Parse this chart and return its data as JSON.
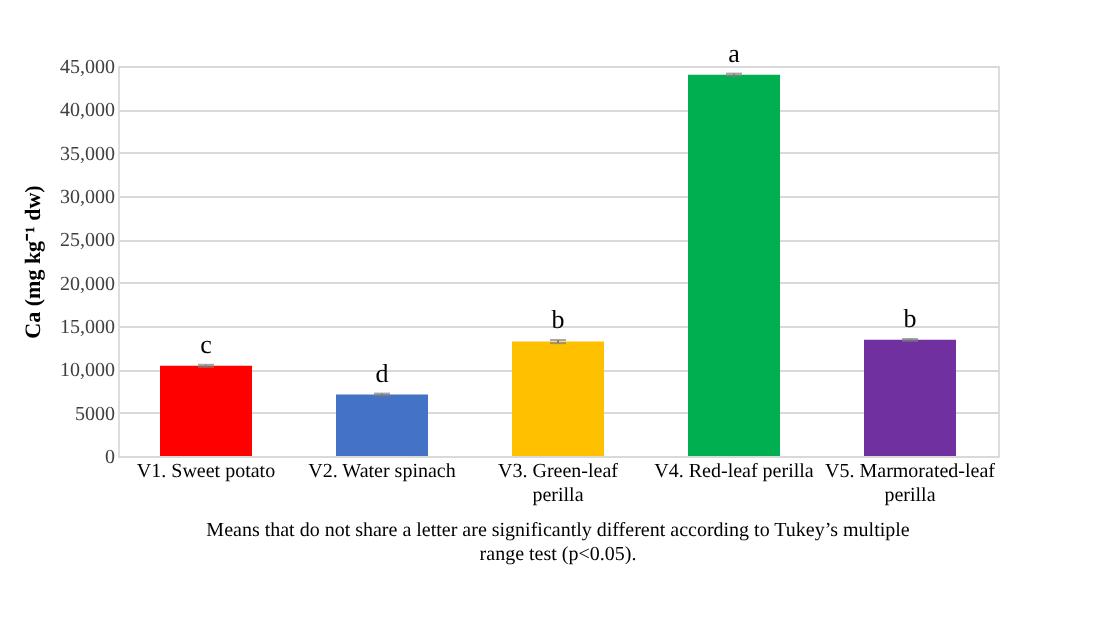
{
  "chart_data": {
    "type": "bar",
    "ylabel": "Ca  (mg kg⁻¹ dw)",
    "categories": [
      "V1. Sweet potato",
      "V2. Water spinach",
      "V3. Green-leaf perilla",
      "V4. Red-leaf perilla",
      "V5. Marmorated-leaf perilla"
    ],
    "values": [
      10400,
      7100,
      13200,
      44000,
      13400
    ],
    "colors": [
      "#ff0000",
      "#4472c4",
      "#ffc000",
      "#00b050",
      "#7030a0"
    ],
    "errors": [
      120,
      100,
      180,
      120,
      100
    ],
    "ylim": [
      0,
      45000
    ],
    "yticks": [
      0,
      {
        "value": 5000,
        "label": "5000"
      },
      {
        "value": 10000,
        "label": "10,000"
      },
      {
        "value": 15000,
        "label": "15,000"
      },
      {
        "value": 20000,
        "label": "20,000"
      },
      {
        "value": 25000,
        "label": "25,000"
      },
      {
        "value": 30000,
        "label": "30,000"
      },
      {
        "value": 35000,
        "label": "35,000"
      },
      {
        "value": 40000,
        "label": "40,000"
      },
      {
        "value": 45000,
        "label": "45,000"
      }
    ],
    "grid": "y",
    "legend": false,
    "annotations": [
      {
        "text": "c",
        "x": "V1. Sweet potato",
        "y": 10520
      },
      {
        "text": "d",
        "x": "V2. Water spinach",
        "y": 7200
      },
      {
        "text": "b",
        "x": "V3. Green-leaf perilla",
        "y": 13380
      },
      {
        "text": "a",
        "x": "V4. Red-leaf perilla",
        "y": 44120
      },
      {
        "text": "b",
        "x": "V5. Marmorated-leaf perilla",
        "y": 13500
      },
      "Means that do not share a letter are significantly different according to Tukey’s multiple range test (p<0.05)."
    ]
  }
}
